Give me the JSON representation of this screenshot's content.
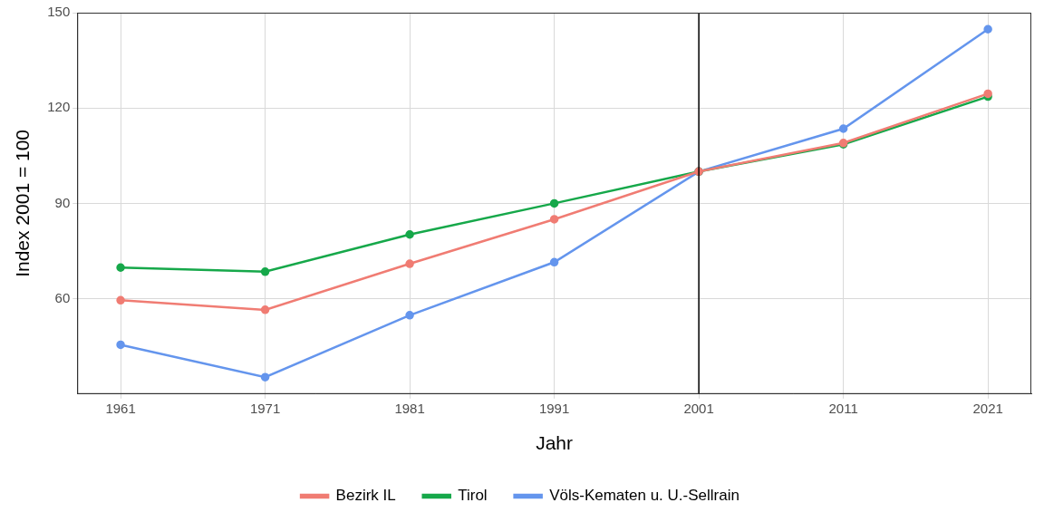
{
  "chart_data": {
    "type": "line",
    "x_label": "Jahr",
    "y_label": "Index 2001 = 100",
    "x": [
      1961,
      1971,
      1981,
      1991,
      2001,
      2011,
      2021
    ],
    "xlim": [
      1958,
      2024
    ],
    "xticks": [
      1961,
      1971,
      1981,
      1991,
      2001,
      2011,
      2021
    ],
    "ylim": [
      30,
      150
    ],
    "yticks": [
      60,
      90,
      120,
      150
    ],
    "vline": 2001,
    "grid": true,
    "legend": "bottom",
    "marker": "circle",
    "line_style": "solid",
    "series": [
      {
        "name": "Bezirk IL",
        "color": "#F07C73",
        "values": [
          59.5,
          56.5,
          71,
          85,
          100,
          109,
          124.5
        ]
      },
      {
        "name": "Tirol",
        "color": "#16A84A",
        "values": [
          69.8,
          68.5,
          80.2,
          90,
          100,
          108.6,
          123.6
        ]
      },
      {
        "name": "Völs-Kematen u. U.-Sellrain",
        "color": "#6495ED",
        "values": [
          45.5,
          35.3,
          54.8,
          71.5,
          100,
          113.5,
          144.8
        ]
      }
    ]
  }
}
